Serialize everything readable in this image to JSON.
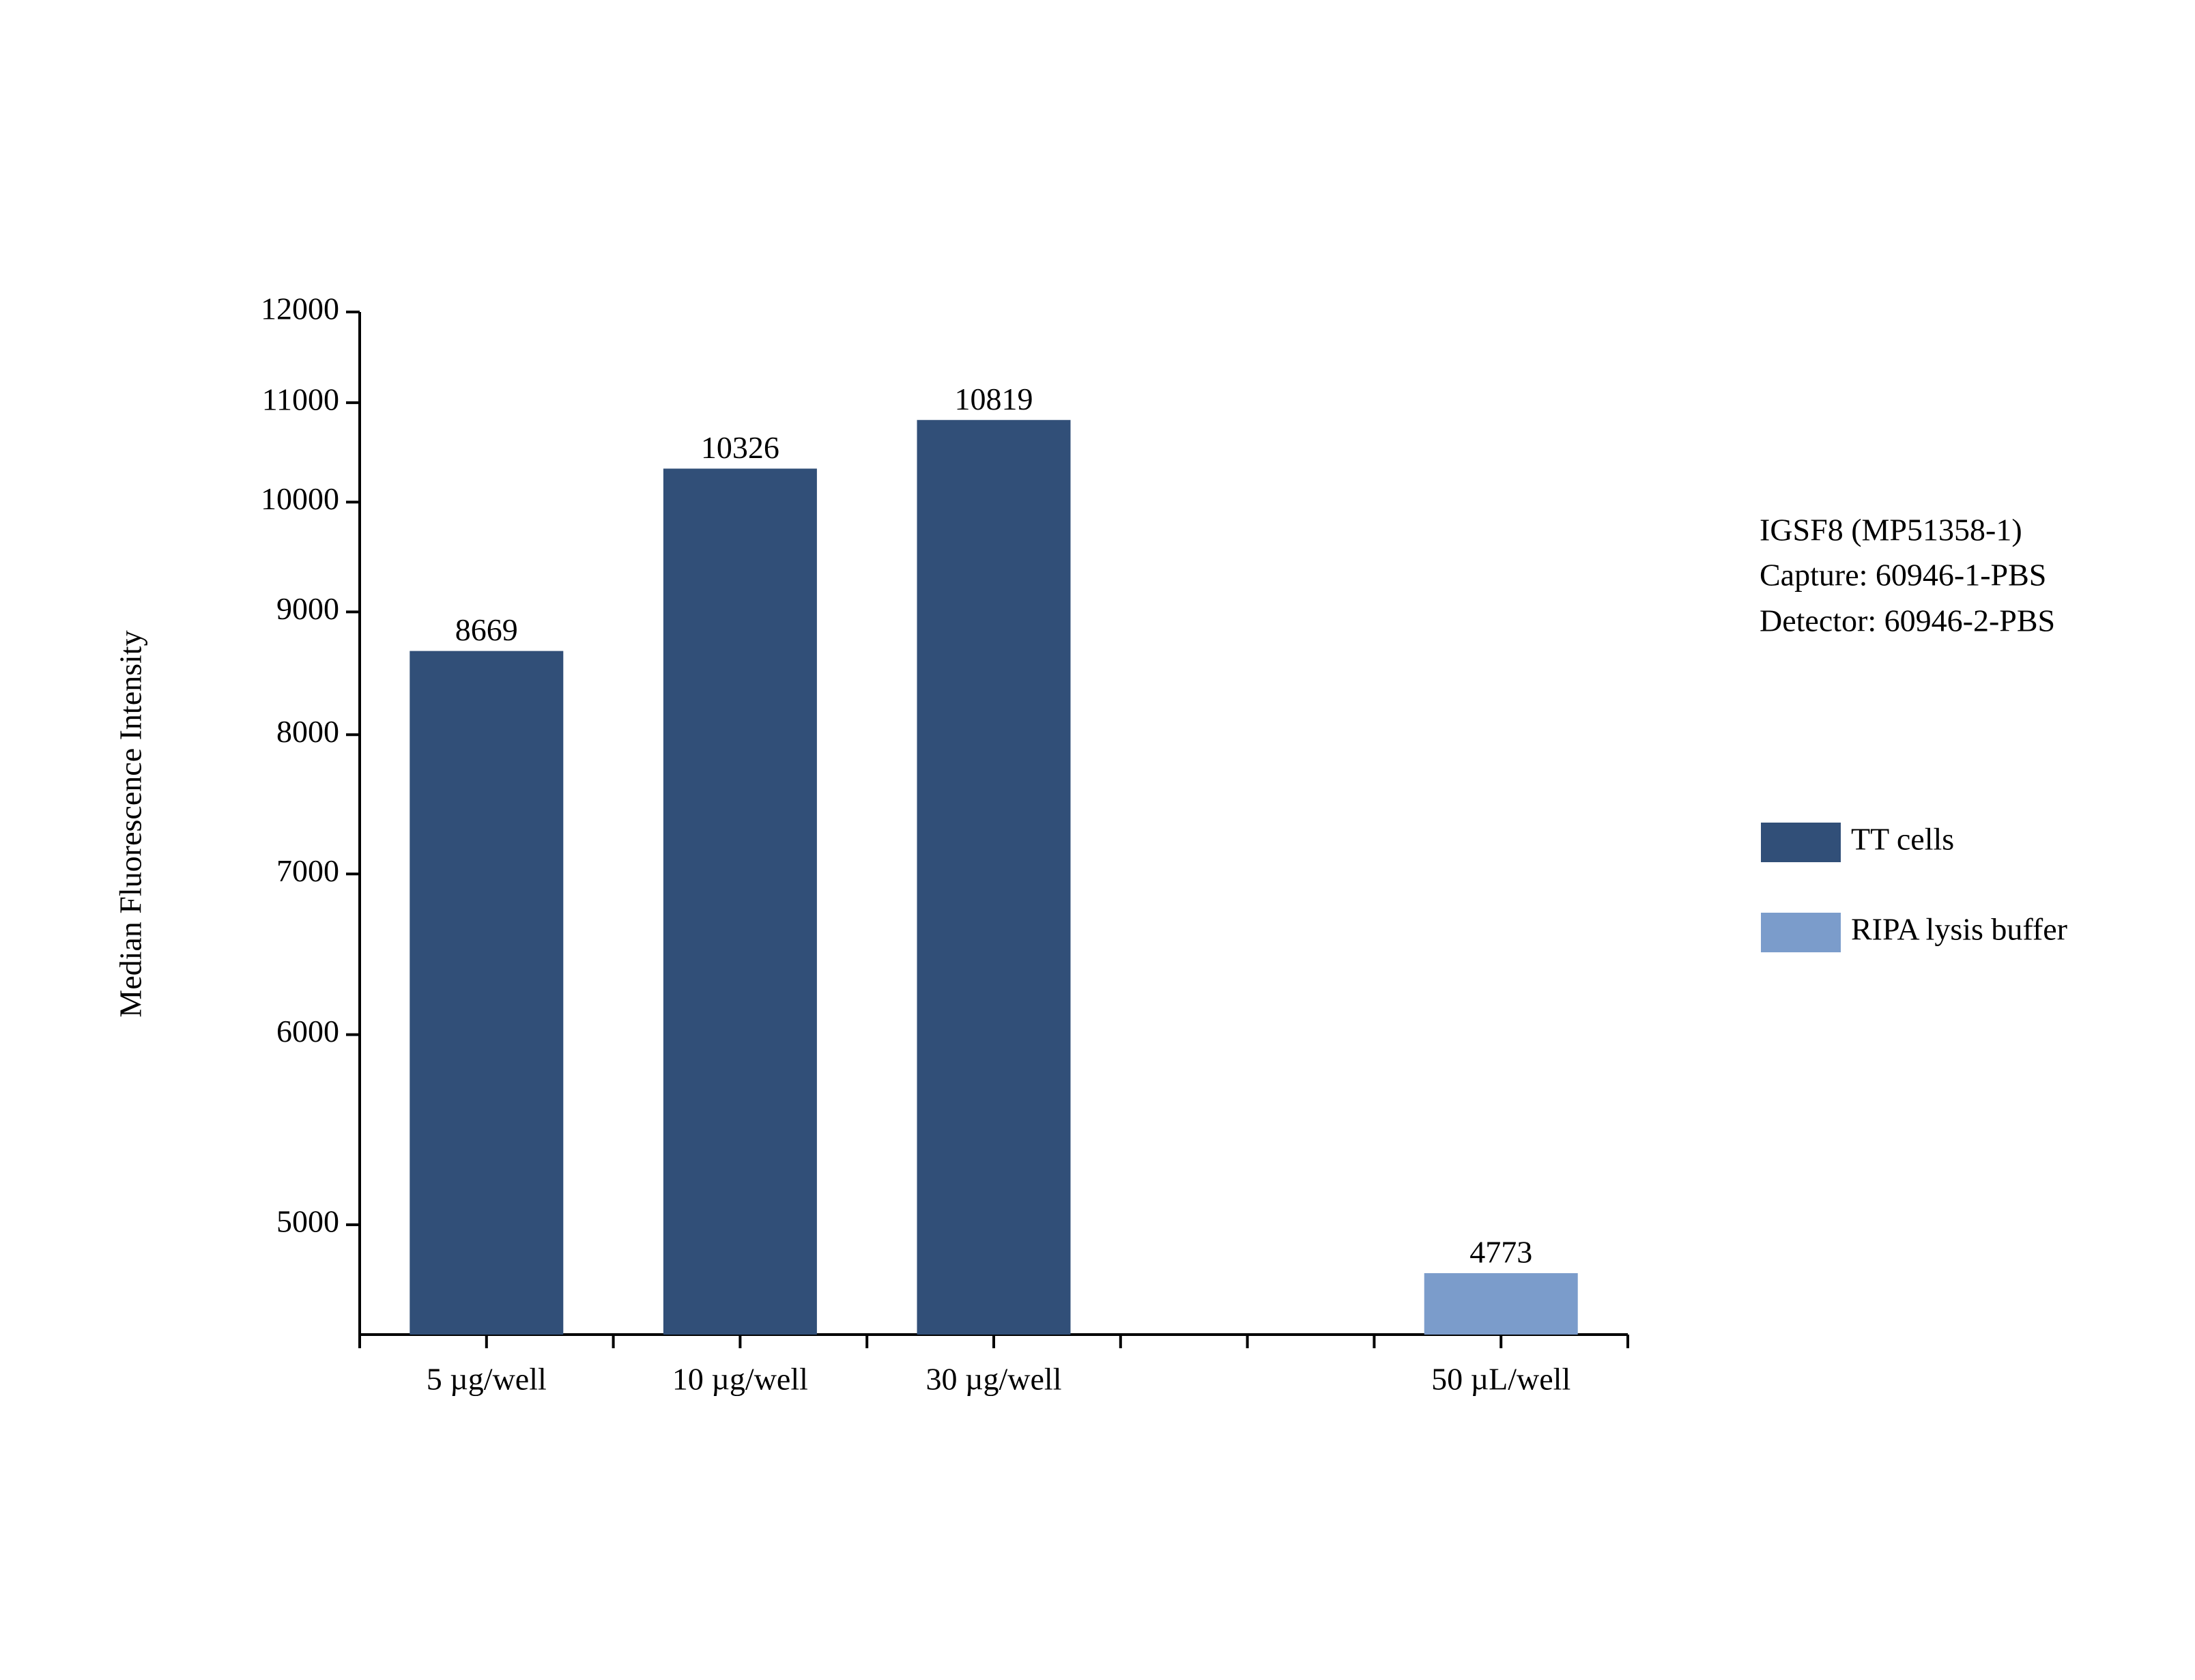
{
  "chart_data": {
    "type": "bar",
    "y_label": "Median Fluorescence Intensity",
    "annotation": [
      "IGSF8 (MP51358-1)",
      "Capture: 60946-1-PBS",
      "Detector: 60946-2-PBS"
    ],
    "categories": [
      "5 µg/well",
      "10 µg/well",
      "30 µg/well",
      null,
      "50 µL/well"
    ],
    "series": [
      {
        "name": "TT cells",
        "color": "#314f78",
        "values": [
          8669,
          10326,
          10819,
          null,
          null
        ]
      },
      {
        "name": "RIPA lysis buffer",
        "color": "#7b9ccb",
        "values": [
          null,
          null,
          null,
          null,
          4773
        ]
      }
    ],
    "ylim": [
      4500,
      12000
    ],
    "y_scale": "log",
    "yticks": [
      5000,
      6000,
      7000,
      8000,
      9000,
      10000,
      11000,
      12000
    ],
    "grid": false,
    "legend": "right"
  }
}
